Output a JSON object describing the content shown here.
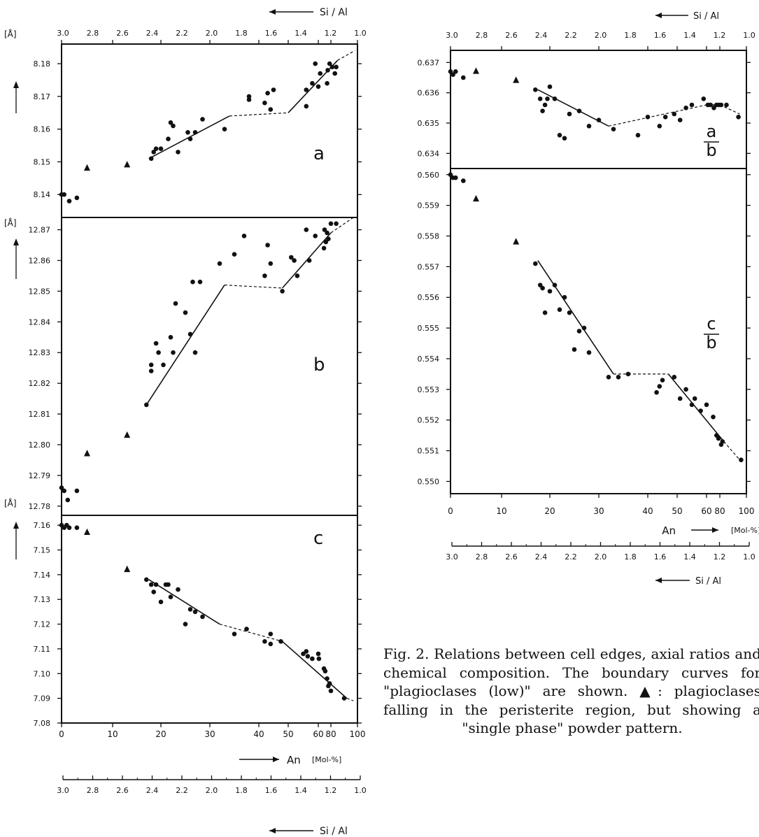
{
  "caption": "Fig. 2. Relations between cell edges, axial ratios and chemical composition. The boundary curves for \"plagioclases (low)\" are shown. ▲: plagioclases falling in the peristerite region, but showing a \"single phase\" powder pattern.",
  "axes": {
    "si_al_label": "Si / Al",
    "an_label": "An",
    "an_unit": "[Mol-%]",
    "unit_label": "[Å]",
    "an_ticks": [
      "0",
      "10",
      "20",
      "30",
      "40",
      "50",
      "60",
      "80",
      "100"
    ],
    "si_al_ticks": [
      "3.0",
      "2.8",
      "2.6",
      "2.4",
      "2.2",
      "2.0",
      "1.8",
      "1.6",
      "1.4",
      "1.2",
      "1.0"
    ]
  },
  "chart_data": [
    {
      "type": "scatter",
      "panel_label": "a",
      "ylabel": "[Å]",
      "ylim": [
        8.133,
        8.186
      ],
      "yticks": [
        "8.14",
        "8.15",
        "8.16",
        "8.17",
        "8.18"
      ],
      "xlabel": "An [Mol-%]",
      "top_axis": "Si / Al",
      "series": [
        {
          "marker": "circle",
          "x": [
            0,
            0.5,
            1.5,
            3,
            18,
            18.5,
            19,
            20,
            21.5,
            22,
            22.5,
            23.5,
            25.5,
            26,
            27,
            28.5,
            33,
            38,
            38,
            42,
            43,
            44,
            45,
            56,
            56,
            58,
            59,
            60,
            63,
            74,
            75,
            78,
            81,
            83,
            84
          ],
          "y": [
            8.14,
            8.14,
            8.138,
            8.139,
            8.151,
            8.153,
            8.154,
            8.154,
            8.157,
            8.162,
            8.161,
            8.153,
            8.159,
            8.157,
            8.159,
            8.163,
            8.16,
            8.17,
            8.169,
            8.168,
            8.171,
            8.166,
            8.172,
            8.167,
            8.172,
            8.174,
            8.18,
            8.173,
            8.177,
            8.174,
            8.178,
            8.18,
            8.179,
            8.177,
            8.179
          ]
        },
        {
          "marker": "triangle",
          "x": [
            5,
            13
          ],
          "y": [
            8.148,
            8.149
          ]
        }
      ],
      "boundary": {
        "solid": [
          [
            [
              17.5,
              8.151
            ],
            [
              34,
              8.164
            ]
          ],
          [
            [
              50,
              8.165
            ],
            [
              85,
              8.181
            ]
          ]
        ],
        "dashed": [
          [
            [
              34,
              8.164
            ],
            [
              50,
              8.165
            ]
          ],
          [
            [
              85,
              8.181
            ],
            [
              98,
              8.184
            ]
          ]
        ]
      }
    },
    {
      "type": "scatter",
      "panel_label": "b",
      "ylim": [
        12.777,
        12.874
      ],
      "yticks": [
        "12.78",
        "12.79",
        "12.80",
        "12.81",
        "12.82",
        "12.83",
        "12.84",
        "12.85",
        "12.86",
        "12.87"
      ],
      "xlabel": "An [Mol-%]",
      "series": [
        {
          "marker": "circle",
          "x": [
            0,
            0.5,
            1.2,
            3,
            17,
            18,
            18,
            19,
            19.5,
            20.5,
            22,
            22.5,
            23,
            25,
            26,
            26.5,
            27,
            28,
            32,
            35,
            37,
            42,
            43,
            44,
            48,
            51,
            52,
            53,
            56,
            57,
            59,
            69,
            70,
            72,
            74,
            76,
            80,
            84
          ],
          "y": [
            12.786,
            12.785,
            12.782,
            12.785,
            12.813,
            12.826,
            12.824,
            12.833,
            12.83,
            12.826,
            12.835,
            12.83,
            12.846,
            12.843,
            12.836,
            12.853,
            12.83,
            12.853,
            12.859,
            12.862,
            12.868,
            12.855,
            12.865,
            12.859,
            12.85,
            12.861,
            12.86,
            12.855,
            12.87,
            12.86,
            12.868,
            12.864,
            12.87,
            12.866,
            12.869,
            12.867,
            12.872,
            12.872
          ]
        },
        {
          "marker": "triangle",
          "x": [
            5,
            13
          ],
          "y": [
            12.797,
            12.803
          ]
        }
      ],
      "boundary": {
        "solid": [
          [
            [
              17,
              12.813
            ],
            [
              33,
              12.852
            ]
          ],
          [
            [
              48,
              12.851
            ],
            [
              80,
              12.869
            ]
          ]
        ],
        "dashed": [
          [
            [
              33,
              12.852
            ],
            [
              48,
              12.851
            ]
          ],
          [
            [
              80,
              12.869
            ],
            [
              97,
              12.874
            ]
          ]
        ]
      }
    },
    {
      "type": "scatter",
      "panel_label": "c",
      "ylim": [
        7.08,
        7.164
      ],
      "yticks": [
        "7.08",
        "7.09",
        "7.10",
        "7.11",
        "7.12",
        "7.13",
        "7.14",
        "7.15",
        "7.16"
      ],
      "xlabel": "An [Mol-%]",
      "bottom_axis": "Si / Al",
      "series": [
        {
          "marker": "circle",
          "x": [
            0,
            0.5,
            1,
            1.5,
            3,
            17,
            18,
            18.5,
            19,
            20,
            21,
            21.5,
            22,
            23.5,
            25,
            26,
            27,
            28.5,
            35,
            37.5,
            42,
            44,
            44,
            47.5,
            55,
            56,
            56.5,
            58,
            60,
            61,
            69,
            71,
            74,
            76,
            78,
            80,
            90
          ],
          "y": [
            7.16,
            7.159,
            7.16,
            7.159,
            7.159,
            7.138,
            7.136,
            7.133,
            7.136,
            7.129,
            7.136,
            7.136,
            7.131,
            7.134,
            7.12,
            7.126,
            7.125,
            7.123,
            7.116,
            7.118,
            7.113,
            7.112,
            7.116,
            7.113,
            7.108,
            7.109,
            7.107,
            7.106,
            7.108,
            7.106,
            7.102,
            7.101,
            7.098,
            7.095,
            7.096,
            7.093,
            7.09
          ]
        },
        {
          "marker": "triangle",
          "x": [
            5,
            13
          ],
          "y": [
            7.157,
            7.142
          ]
        }
      ],
      "boundary": {
        "solid": [
          [
            [
              17.5,
              7.138
            ],
            [
              32,
              7.12
            ]
          ],
          [
            [
              48,
              7.113
            ],
            [
              92,
              7.09
            ]
          ]
        ],
        "dashed": [
          [
            [
              32,
              7.12
            ],
            [
              48,
              7.113
            ]
          ],
          [
            [
              92,
              7.09
            ],
            [
              97,
              7.089
            ]
          ]
        ]
      }
    },
    {
      "type": "scatter",
      "panel_label": "a/b",
      "ylim": [
        0.6335,
        0.6374
      ],
      "yticks": [
        "0.637",
        "0.636",
        "0.635",
        "0.634"
      ],
      "top_axis": "Si / Al",
      "series": [
        {
          "marker": "circle",
          "x": [
            0,
            0.5,
            1,
            2.5,
            17,
            18,
            18.5,
            19,
            19.5,
            20,
            21,
            22,
            23,
            24,
            26,
            28,
            30,
            33,
            38,
            40,
            44,
            46,
            49,
            51,
            53,
            55,
            59,
            62,
            66,
            71,
            75,
            79,
            81,
            85,
            94
          ],
          "y": [
            0.6367,
            0.6366,
            0.6367,
            0.6365,
            0.6361,
            0.6358,
            0.6354,
            0.6356,
            0.6358,
            0.6362,
            0.6358,
            0.6346,
            0.6345,
            0.6353,
            0.6354,
            0.6349,
            0.6351,
            0.6348,
            0.6346,
            0.6352,
            0.6349,
            0.6352,
            0.6353,
            0.6351,
            0.6355,
            0.6356,
            0.6358,
            0.6356,
            0.6356,
            0.6355,
            0.6356,
            0.6356,
            0.6356,
            0.6356,
            0.6352
          ]
        },
        {
          "marker": "triangle",
          "x": [
            5,
            13
          ],
          "y": [
            0.6367,
            0.6364
          ]
        }
      ],
      "boundary": {
        "solid": [
          [
            [
              17.5,
              0.6361
            ],
            [
              32,
              0.6349
            ]
          ],
          [
            [
              60,
              0.6356
            ],
            [
              80,
              0.6356
            ]
          ]
        ],
        "dashed": [
          [
            [
              32,
              0.6349
            ],
            [
              60,
              0.6356
            ]
          ],
          [
            [
              80,
              0.6356
            ],
            [
              95,
              0.6353
            ]
          ]
        ]
      }
    },
    {
      "type": "scatter",
      "panel_label": "c/b",
      "ylim": [
        0.5496,
        0.5602
      ],
      "yticks": [
        "0.560",
        "0.559",
        "0.558",
        "0.557",
        "0.556",
        "0.555",
        "0.554",
        "0.553",
        "0.552",
        "0.551",
        "0.550"
      ],
      "xlabel": "An [Mol-%]",
      "bottom_axis": "Si / Al",
      "series": [
        {
          "marker": "circle",
          "x": [
            0,
            0.5,
            1,
            2.5,
            17,
            18,
            18.5,
            19,
            20,
            21,
            22,
            23,
            24,
            25,
            26,
            27,
            28,
            32,
            34,
            36,
            43,
            44,
            45,
            49,
            51,
            53,
            55,
            56,
            58,
            60,
            70,
            75,
            78,
            81,
            82,
            96
          ],
          "y": [
            0.56,
            0.5599,
            0.5599,
            0.5598,
            0.5571,
            0.5564,
            0.5563,
            0.5555,
            0.5562,
            0.5564,
            0.5556,
            0.556,
            0.5555,
            0.5543,
            0.5549,
            0.555,
            0.5542,
            0.5534,
            0.5534,
            0.5535,
            0.5529,
            0.5531,
            0.5533,
            0.5534,
            0.5527,
            0.553,
            0.5525,
            0.5527,
            0.5523,
            0.5525,
            0.5521,
            0.5515,
            0.5514,
            0.5512,
            0.5513,
            0.5507
          ]
        },
        {
          "marker": "triangle",
          "x": [
            5,
            13
          ],
          "y": [
            0.5592,
            0.5578
          ]
        }
      ],
      "boundary": {
        "solid": [
          [
            [
              17.5,
              0.5572
            ],
            [
              33,
              0.5535
            ]
          ],
          [
            [
              47,
              0.5535
            ],
            [
              83,
              0.5513
            ]
          ]
        ],
        "dashed": [
          [
            [
              33,
              0.5535
            ],
            [
              47,
              0.5535
            ]
          ],
          [
            [
              83,
              0.5513
            ],
            [
              97,
              0.5506
            ]
          ]
        ]
      }
    }
  ]
}
